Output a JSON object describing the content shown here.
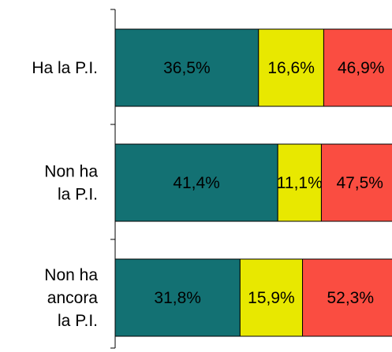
{
  "chart_data": {
    "type": "bar",
    "orientation": "horizontal",
    "stacked": "percent",
    "categories": [
      [
        "Ha la P.I."
      ],
      [
        "Non ha",
        "la P.I."
      ],
      [
        "Non ha",
        "ancora",
        "la P.I."
      ]
    ],
    "series": [
      {
        "color": "#137173",
        "values": [
          36.5,
          41.4,
          31.8
        ]
      },
      {
        "color": "#e8e800",
        "values": [
          16.6,
          11.1,
          15.9
        ]
      },
      {
        "color": "#fa4d41",
        "values": [
          46.9,
          47.5,
          52.3
        ]
      }
    ],
    "data_labels": [
      [
        "36,5%",
        "41,4%",
        "31,8%"
      ],
      [
        "16,6%",
        "11,1%",
        "15,9%"
      ],
      [
        "46,9%",
        "47,5%",
        "52,3%"
      ]
    ],
    "xlim": [
      0,
      100
    ],
    "grid": false,
    "legend": "none"
  }
}
